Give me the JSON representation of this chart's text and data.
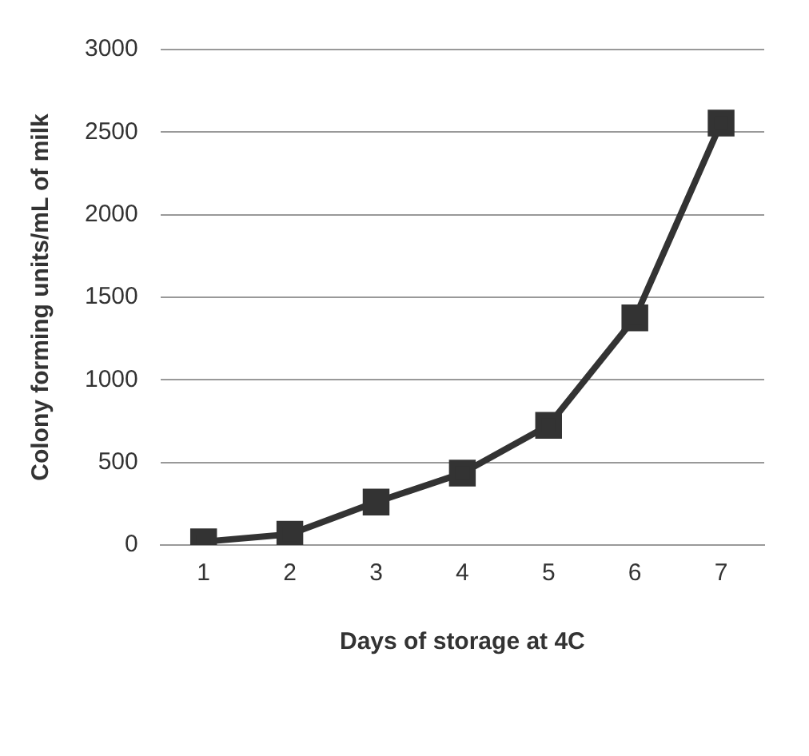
{
  "chart_data": {
    "type": "line",
    "xlabel": "Days of storage at 4C",
    "ylabel": "Colony forming units/mL of milk",
    "categories": [
      "1",
      "2",
      "3",
      "4",
      "5",
      "6",
      "7"
    ],
    "series": [
      {
        "color": "#333333",
        "values": [
          20,
          65,
          260,
          435,
          725,
          1375,
          2555
        ]
      }
    ],
    "ylim": [
      0,
      3000
    ],
    "yticks": [
      0,
      500,
      1000,
      1500,
      2000,
      2500,
      3000
    ],
    "grid": "y",
    "legend": false,
    "marker": "square",
    "line_style": "solid"
  }
}
